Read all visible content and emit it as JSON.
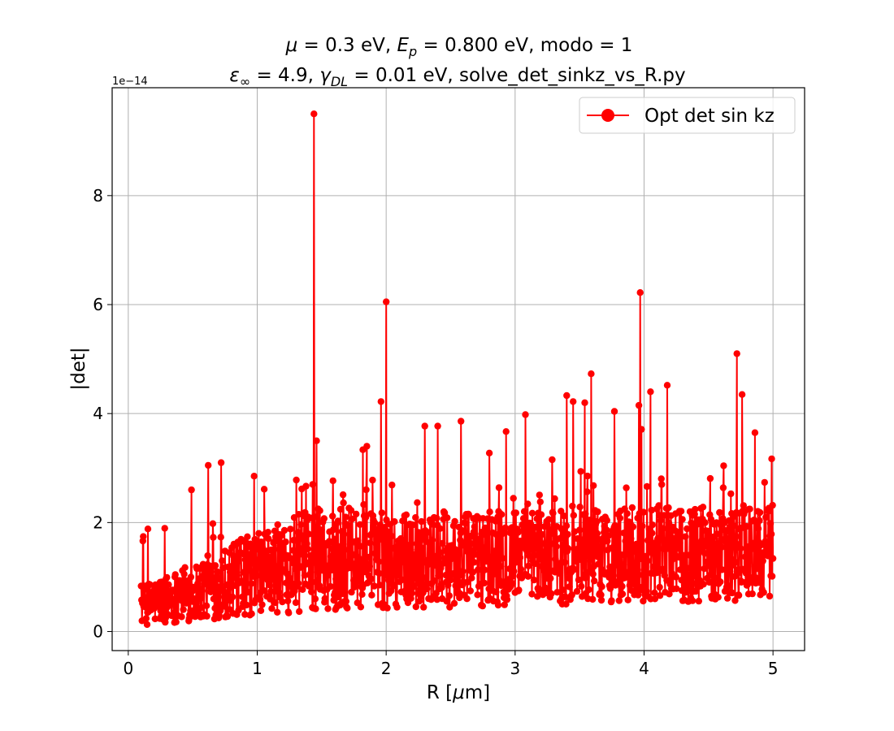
{
  "chart_data": {
    "type": "line",
    "title_line1": "μ = 0.3 eV, E_p = 0.800 eV, modo = 1",
    "title_line2": "ε∞ = 4.9, γ_DL = 0.01 eV, solve_det_sinkz_vs_R.py",
    "xlabel": "R [μm]",
    "ylabel": "|det|",
    "y_offset_label": "1e−14",
    "y_scale": 1e-14,
    "xlim": [
      -0.125,
      5.245
    ],
    "ylim": [
      -0.35,
      9.98
    ],
    "xticks": [
      0,
      1,
      2,
      3,
      4,
      5
    ],
    "xtick_labels": [
      "0",
      "1",
      "2",
      "3",
      "4",
      "5"
    ],
    "yticks": [
      0,
      2,
      4,
      6,
      8
    ],
    "ytick_labels": [
      "0",
      "2",
      "4",
      "6",
      "8"
    ],
    "grid": true,
    "legend_position": "top-right",
    "series": [
      {
        "name": "Opt det sin kz",
        "color": "#ff0000",
        "marker": "circle",
        "x_range": [
          0.1,
          5.0
        ],
        "n_points": 1500,
        "peaks": [
          {
            "x": 1.44,
            "y": 9.5
          },
          {
            "x": 1.46,
            "y": 3.5
          },
          {
            "x": 2.0,
            "y": 6.05
          },
          {
            "x": 1.96,
            "y": 4.22
          },
          {
            "x": 3.97,
            "y": 6.22
          },
          {
            "x": 4.72,
            "y": 5.1
          },
          {
            "x": 3.59,
            "y": 4.73
          },
          {
            "x": 4.18,
            "y": 4.52
          },
          {
            "x": 4.05,
            "y": 4.4
          },
          {
            "x": 4.76,
            "y": 4.35
          },
          {
            "x": 3.4,
            "y": 4.33
          },
          {
            "x": 3.45,
            "y": 4.22
          },
          {
            "x": 3.54,
            "y": 4.2
          },
          {
            "x": 3.96,
            "y": 4.15
          },
          {
            "x": 3.77,
            "y": 4.04
          },
          {
            "x": 3.08,
            "y": 3.98
          },
          {
            "x": 2.58,
            "y": 3.86
          },
          {
            "x": 2.3,
            "y": 3.77
          },
          {
            "x": 2.4,
            "y": 3.77
          },
          {
            "x": 2.93,
            "y": 3.67
          },
          {
            "x": 3.98,
            "y": 3.71
          },
          {
            "x": 0.72,
            "y": 3.1
          },
          {
            "x": 0.62,
            "y": 3.05
          },
          {
            "x": 1.85,
            "y": 3.4
          },
          {
            "x": 0.49,
            "y": 2.6
          },
          {
            "x": 1.43,
            "y": 2.7
          },
          {
            "x": 4.86,
            "y": 3.65
          },
          {
            "x": 4.99,
            "y": 3.17
          }
        ]
      }
    ]
  }
}
